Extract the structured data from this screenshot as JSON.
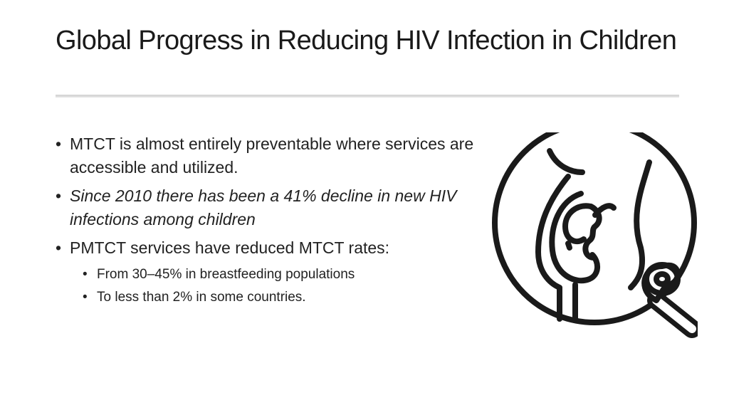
{
  "slide": {
    "title": "Global Progress in Reducing HIV Infection in Children",
    "bullets": [
      {
        "text": "MTCT is almost entirely preventable where services are accessible and utilized.",
        "level": 1,
        "italic": false
      },
      {
        "text": "Since 2010 there has been a 41% decline in new HIV infections among children",
        "level": 1,
        "italic": true
      },
      {
        "text": "PMTCT services have reduced MTCT rates:",
        "level": 1,
        "italic": false
      },
      {
        "text": "From 30–45% in breastfeeding populations",
        "level": 2,
        "italic": false
      },
      {
        "text": "To less than 2% in some countries.",
        "level": 2,
        "italic": false
      }
    ],
    "bullet_char": "•",
    "illustration": {
      "icon": "pregnancy-awareness-ribbon-icon"
    },
    "colors": {
      "text": "#222222",
      "rule": "#d5d5d5",
      "icon_stroke": "#1a1a1a",
      "background": "#ffffff"
    }
  }
}
